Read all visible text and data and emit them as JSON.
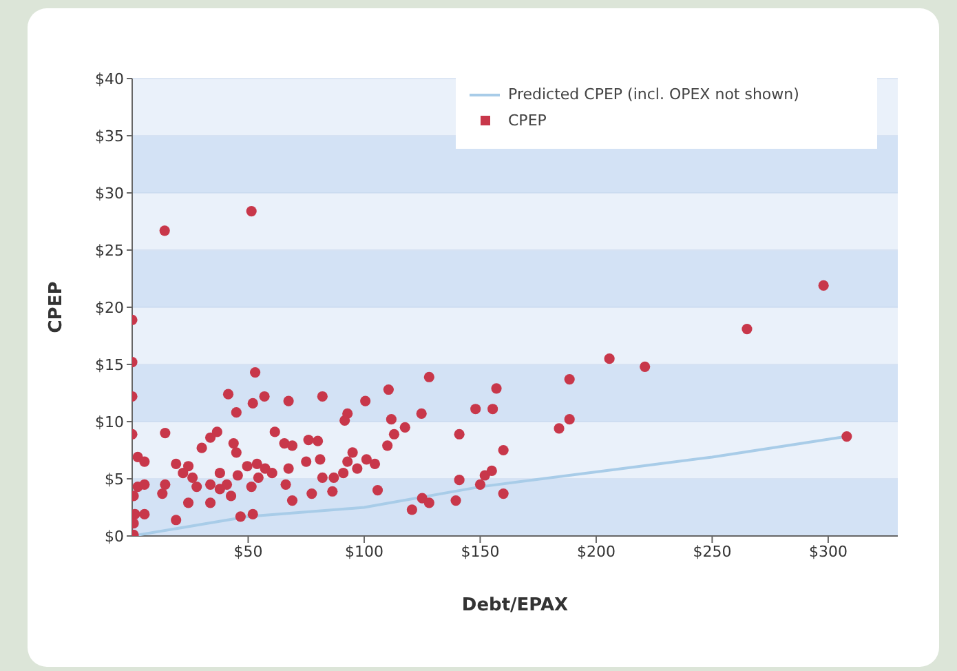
{
  "chart_data": {
    "type": "scatter",
    "xlabel": "Debt/EPAX",
    "ylabel": "CPEP",
    "xlim": [
      0,
      330
    ],
    "ylim": [
      0,
      40
    ],
    "xticks": [
      {
        "value": 50,
        "label": "$50"
      },
      {
        "value": 100,
        "label": "$100"
      },
      {
        "value": 150,
        "label": "$150"
      },
      {
        "value": 200,
        "label": "$200"
      },
      {
        "value": 250,
        "label": "$250"
      },
      {
        "value": 300,
        "label": "$300"
      }
    ],
    "yticks": [
      {
        "value": 0,
        "label": "$0"
      },
      {
        "value": 5,
        "label": "$5"
      },
      {
        "value": 10,
        "label": "$10"
      },
      {
        "value": 15,
        "label": "$15"
      },
      {
        "value": 20,
        "label": "$20"
      },
      {
        "value": 25,
        "label": "$25"
      },
      {
        "value": 30,
        "label": "$30"
      },
      {
        "value": 35,
        "label": "$35"
      },
      {
        "value": 40,
        "label": "$40"
      }
    ],
    "grid": "y",
    "legend": "top right",
    "series": [
      {
        "name": "Predicted CPEP (incl. OPEX not shown)",
        "type": "line",
        "color": "#a8cce8",
        "x": [
          0,
          50,
          100,
          150,
          200,
          250,
          308
        ],
        "values": [
          0,
          1.7,
          2.5,
          4.3,
          5.6,
          6.9,
          8.7
        ]
      },
      {
        "name": "CPEP",
        "color": "#c8374a",
        "marker": "circle",
        "x": [
          14,
          51.4,
          298,
          265,
          205.7,
          221,
          188.5,
          188.5,
          184,
          308,
          0,
          0,
          0,
          0,
          53,
          128,
          110.5,
          157,
          148,
          155.4,
          41.4,
          57,
          67.4,
          52,
          44.9,
          82,
          100.5,
          92.8,
          91.6,
          111.7,
          124.7,
          117.6,
          112.9,
          110,
          141,
          14.2,
          36.6,
          33.7,
          30,
          43.7,
          44.9,
          61.5,
          65.6,
          69,
          76,
          80,
          95,
          92.8,
          2.4,
          5.3,
          2.4,
          5.3,
          0.6,
          1.2,
          5.3,
          0.6,
          0.6,
          14.2,
          13,
          18.9,
          21.9,
          24.2,
          26,
          24.2,
          18.9,
          27.8,
          33.7,
          33.7,
          37.8,
          37.8,
          40.8,
          42.6,
          45.5,
          46.7,
          52,
          49.6,
          53.8,
          57.3,
          54.4,
          51.4,
          60.3,
          67.4,
          66.2,
          69,
          75,
          77.4,
          81,
          82,
          86.9,
          86.3,
          91,
          97,
          101,
          104.6,
          105.8,
          120.6,
          125,
          128,
          139.5,
          141,
          150,
          152,
          155,
          160,
          160
        ],
        "values": [
          26.7,
          28.4,
          21.9,
          18.1,
          15.5,
          14.8,
          13.7,
          10.2,
          9.4,
          8.7,
          18.9,
          15.2,
          12.2,
          8.9,
          14.3,
          13.9,
          12.8,
          12.9,
          11.1,
          11.1,
          12.4,
          12.2,
          11.8,
          11.6,
          10.8,
          12.2,
          11.8,
          10.7,
          10.1,
          10.2,
          10.7,
          9.5,
          8.9,
          7.9,
          8.9,
          9,
          9.1,
          8.6,
          7.7,
          8.1,
          7.3,
          9.1,
          8.1,
          7.9,
          8.4,
          8.3,
          7.3,
          6.5,
          6.9,
          6.5,
          4.3,
          4.5,
          3.5,
          1.9,
          1.9,
          1.1,
          0.1,
          4.5,
          3.7,
          6.3,
          5.5,
          6.1,
          5.1,
          2.9,
          1.4,
          4.3,
          2.9,
          4.5,
          4.1,
          5.5,
          4.5,
          3.5,
          5.3,
          1.7,
          1.9,
          6.1,
          6.3,
          5.9,
          5.1,
          4.3,
          5.5,
          5.9,
          4.5,
          3.1,
          6.5,
          3.7,
          6.7,
          5.1,
          5.1,
          3.9,
          5.5,
          5.9,
          6.7,
          6.3,
          4,
          2.3,
          3.3,
          2.9,
          3.1,
          4.9,
          4.5,
          5.3,
          5.7,
          3.7,
          7.5
        ]
      }
    ]
  }
}
